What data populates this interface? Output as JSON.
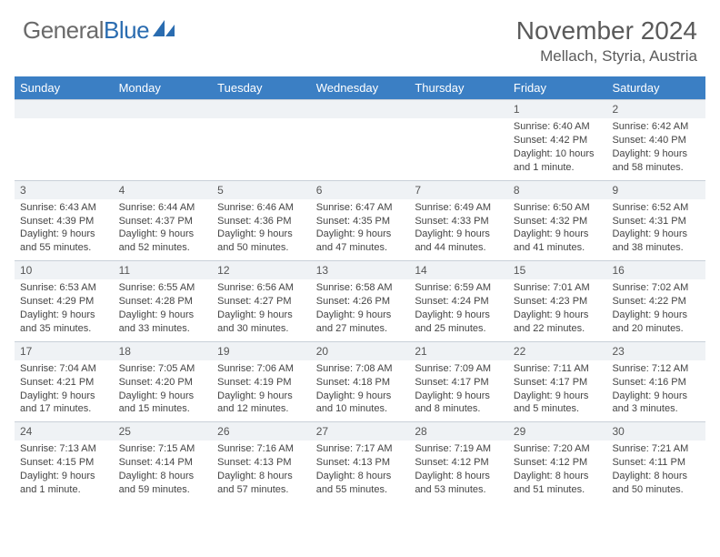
{
  "logo": {
    "word1": "General",
    "word2": "Blue"
  },
  "title": "November 2024",
  "location": "Mellach, Styria, Austria",
  "colors": {
    "header_bg": "#3b7fc4",
    "header_text": "#ffffff",
    "daynum_bg": "#eff2f5",
    "border": "#c9d0d8",
    "body_text": "#444444",
    "title_text": "#5a5a5a"
  },
  "weekdays": [
    "Sunday",
    "Monday",
    "Tuesday",
    "Wednesday",
    "Thursday",
    "Friday",
    "Saturday"
  ],
  "weeks": [
    [
      {
        "n": "",
        "sr": "",
        "ss": "",
        "dl": ""
      },
      {
        "n": "",
        "sr": "",
        "ss": "",
        "dl": ""
      },
      {
        "n": "",
        "sr": "",
        "ss": "",
        "dl": ""
      },
      {
        "n": "",
        "sr": "",
        "ss": "",
        "dl": ""
      },
      {
        "n": "",
        "sr": "",
        "ss": "",
        "dl": ""
      },
      {
        "n": "1",
        "sr": "Sunrise: 6:40 AM",
        "ss": "Sunset: 4:42 PM",
        "dl": "Daylight: 10 hours and 1 minute."
      },
      {
        "n": "2",
        "sr": "Sunrise: 6:42 AM",
        "ss": "Sunset: 4:40 PM",
        "dl": "Daylight: 9 hours and 58 minutes."
      }
    ],
    [
      {
        "n": "3",
        "sr": "Sunrise: 6:43 AM",
        "ss": "Sunset: 4:39 PM",
        "dl": "Daylight: 9 hours and 55 minutes."
      },
      {
        "n": "4",
        "sr": "Sunrise: 6:44 AM",
        "ss": "Sunset: 4:37 PM",
        "dl": "Daylight: 9 hours and 52 minutes."
      },
      {
        "n": "5",
        "sr": "Sunrise: 6:46 AM",
        "ss": "Sunset: 4:36 PM",
        "dl": "Daylight: 9 hours and 50 minutes."
      },
      {
        "n": "6",
        "sr": "Sunrise: 6:47 AM",
        "ss": "Sunset: 4:35 PM",
        "dl": "Daylight: 9 hours and 47 minutes."
      },
      {
        "n": "7",
        "sr": "Sunrise: 6:49 AM",
        "ss": "Sunset: 4:33 PM",
        "dl": "Daylight: 9 hours and 44 minutes."
      },
      {
        "n": "8",
        "sr": "Sunrise: 6:50 AM",
        "ss": "Sunset: 4:32 PM",
        "dl": "Daylight: 9 hours and 41 minutes."
      },
      {
        "n": "9",
        "sr": "Sunrise: 6:52 AM",
        "ss": "Sunset: 4:31 PM",
        "dl": "Daylight: 9 hours and 38 minutes."
      }
    ],
    [
      {
        "n": "10",
        "sr": "Sunrise: 6:53 AM",
        "ss": "Sunset: 4:29 PM",
        "dl": "Daylight: 9 hours and 35 minutes."
      },
      {
        "n": "11",
        "sr": "Sunrise: 6:55 AM",
        "ss": "Sunset: 4:28 PM",
        "dl": "Daylight: 9 hours and 33 minutes."
      },
      {
        "n": "12",
        "sr": "Sunrise: 6:56 AM",
        "ss": "Sunset: 4:27 PM",
        "dl": "Daylight: 9 hours and 30 minutes."
      },
      {
        "n": "13",
        "sr": "Sunrise: 6:58 AM",
        "ss": "Sunset: 4:26 PM",
        "dl": "Daylight: 9 hours and 27 minutes."
      },
      {
        "n": "14",
        "sr": "Sunrise: 6:59 AM",
        "ss": "Sunset: 4:24 PM",
        "dl": "Daylight: 9 hours and 25 minutes."
      },
      {
        "n": "15",
        "sr": "Sunrise: 7:01 AM",
        "ss": "Sunset: 4:23 PM",
        "dl": "Daylight: 9 hours and 22 minutes."
      },
      {
        "n": "16",
        "sr": "Sunrise: 7:02 AM",
        "ss": "Sunset: 4:22 PM",
        "dl": "Daylight: 9 hours and 20 minutes."
      }
    ],
    [
      {
        "n": "17",
        "sr": "Sunrise: 7:04 AM",
        "ss": "Sunset: 4:21 PM",
        "dl": "Daylight: 9 hours and 17 minutes."
      },
      {
        "n": "18",
        "sr": "Sunrise: 7:05 AM",
        "ss": "Sunset: 4:20 PM",
        "dl": "Daylight: 9 hours and 15 minutes."
      },
      {
        "n": "19",
        "sr": "Sunrise: 7:06 AM",
        "ss": "Sunset: 4:19 PM",
        "dl": "Daylight: 9 hours and 12 minutes."
      },
      {
        "n": "20",
        "sr": "Sunrise: 7:08 AM",
        "ss": "Sunset: 4:18 PM",
        "dl": "Daylight: 9 hours and 10 minutes."
      },
      {
        "n": "21",
        "sr": "Sunrise: 7:09 AM",
        "ss": "Sunset: 4:17 PM",
        "dl": "Daylight: 9 hours and 8 minutes."
      },
      {
        "n": "22",
        "sr": "Sunrise: 7:11 AM",
        "ss": "Sunset: 4:17 PM",
        "dl": "Daylight: 9 hours and 5 minutes."
      },
      {
        "n": "23",
        "sr": "Sunrise: 7:12 AM",
        "ss": "Sunset: 4:16 PM",
        "dl": "Daylight: 9 hours and 3 minutes."
      }
    ],
    [
      {
        "n": "24",
        "sr": "Sunrise: 7:13 AM",
        "ss": "Sunset: 4:15 PM",
        "dl": "Daylight: 9 hours and 1 minute."
      },
      {
        "n": "25",
        "sr": "Sunrise: 7:15 AM",
        "ss": "Sunset: 4:14 PM",
        "dl": "Daylight: 8 hours and 59 minutes."
      },
      {
        "n": "26",
        "sr": "Sunrise: 7:16 AM",
        "ss": "Sunset: 4:13 PM",
        "dl": "Daylight: 8 hours and 57 minutes."
      },
      {
        "n": "27",
        "sr": "Sunrise: 7:17 AM",
        "ss": "Sunset: 4:13 PM",
        "dl": "Daylight: 8 hours and 55 minutes."
      },
      {
        "n": "28",
        "sr": "Sunrise: 7:19 AM",
        "ss": "Sunset: 4:12 PM",
        "dl": "Daylight: 8 hours and 53 minutes."
      },
      {
        "n": "29",
        "sr": "Sunrise: 7:20 AM",
        "ss": "Sunset: 4:12 PM",
        "dl": "Daylight: 8 hours and 51 minutes."
      },
      {
        "n": "30",
        "sr": "Sunrise: 7:21 AM",
        "ss": "Sunset: 4:11 PM",
        "dl": "Daylight: 8 hours and 50 minutes."
      }
    ]
  ]
}
